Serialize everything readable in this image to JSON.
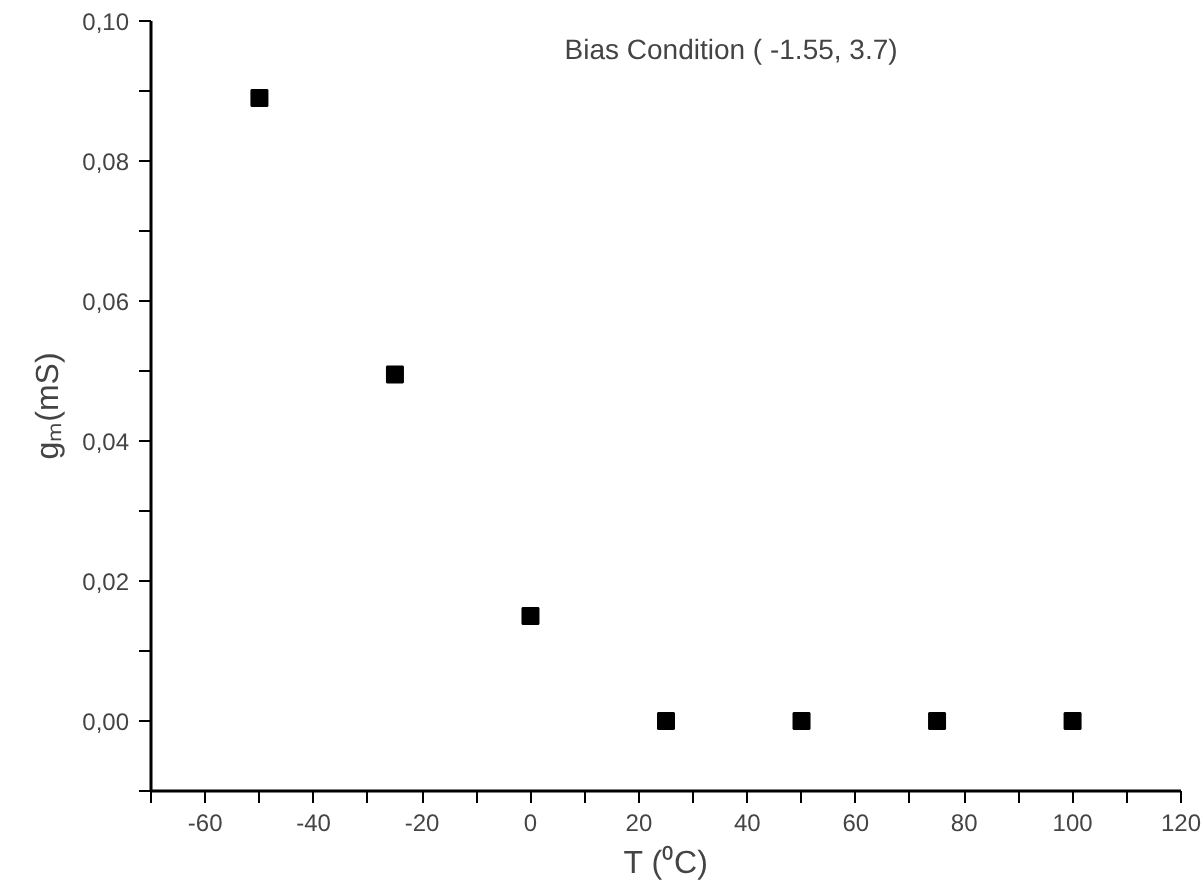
{
  "chart_data": {
    "type": "scatter",
    "title": "Bias Condition ( -1.55, 3.7)",
    "xlabel": "T (⁰C)",
    "ylabel": "gₘ(mS)",
    "x": [
      -50,
      -25,
      0,
      25,
      50,
      75,
      100
    ],
    "series": [
      {
        "color": "#000000",
        "values": [
          0.089,
          0.0495,
          0.015,
          0,
          0,
          0,
          0
        ]
      }
    ],
    "marker": "square",
    "xlim": [
      -70,
      120
    ],
    "ylim": [
      -0.01,
      0.1
    ],
    "xticks": [
      {
        "value": -70,
        "label": null
      },
      -60,
      {
        "value": -50,
        "label": null
      },
      -40,
      {
        "value": -30,
        "label": null
      },
      -20,
      {
        "value": -10,
        "label": null
      },
      0,
      {
        "value": 10,
        "label": null
      },
      20,
      {
        "value": 30,
        "label": null
      },
      40,
      {
        "value": 50,
        "label": null
      },
      60,
      {
        "value": 70,
        "label": null
      },
      80,
      {
        "value": 90,
        "label": null
      },
      100,
      {
        "value": 110,
        "label": null
      },
      120
    ],
    "yticks": [
      {
        "value": -0.01,
        "label": null
      },
      {
        "value": 0,
        "label": "0,00"
      },
      {
        "value": 0.01,
        "label": null
      },
      {
        "value": 0.02,
        "label": "0,02"
      },
      {
        "value": 0.03,
        "label": null
      },
      {
        "value": 0.04,
        "label": "0,04"
      },
      {
        "value": 0.05,
        "label": null
      },
      {
        "value": 0.06,
        "label": "0,06"
      },
      {
        "value": 0.07,
        "label": null
      },
      {
        "value": 0.08,
        "label": "0,08"
      },
      {
        "value": 0.09,
        "label": null
      },
      {
        "value": 0.1,
        "label": "0,10"
      }
    ],
    "grid": false
  }
}
